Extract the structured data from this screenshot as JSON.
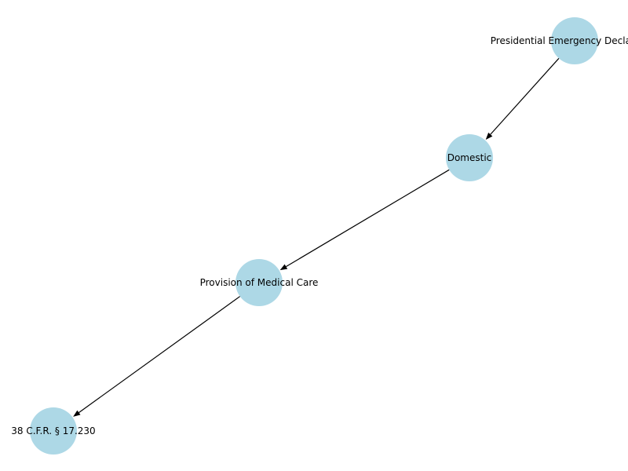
{
  "diagram": {
    "type": "directed-graph",
    "node_color": "#add8e6",
    "edge_color": "#000000",
    "nodes": [
      {
        "id": "n0",
        "label": "Presidential Emergency Declaration"
      },
      {
        "id": "n1",
        "label": "Domestic"
      },
      {
        "id": "n2",
        "label": "Provision of Medical Care"
      },
      {
        "id": "n3",
        "label": "38 C.F.R. § 17.230"
      }
    ],
    "edges": [
      {
        "from": "n0",
        "to": "n1"
      },
      {
        "from": "n1",
        "to": "n2"
      },
      {
        "from": "n2",
        "to": "n3"
      }
    ]
  }
}
